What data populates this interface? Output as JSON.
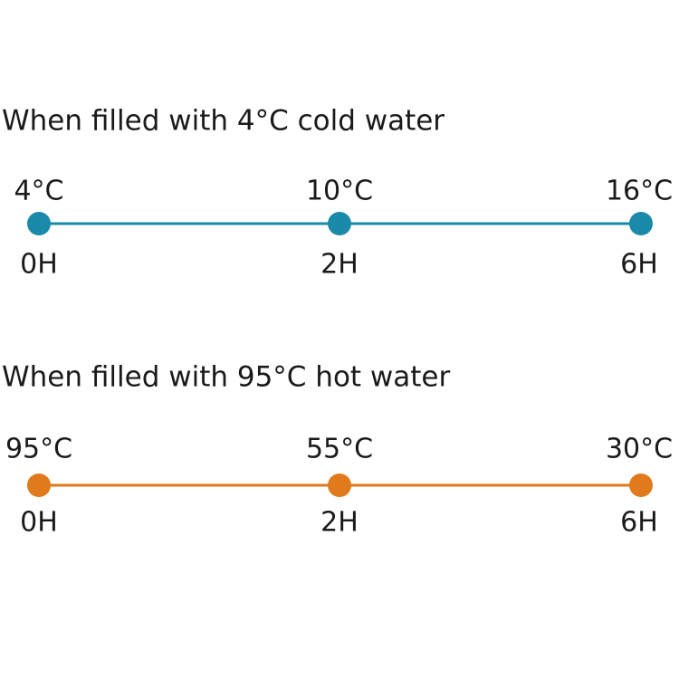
{
  "sections": [
    {
      "title": "When filled with 4°C cold water",
      "points": [
        {
          "temperature": "4°C",
          "time": "0H"
        },
        {
          "temperature": "10°C",
          "time": "2H"
        },
        {
          "temperature": "16°C",
          "time": "6H"
        }
      ]
    },
    {
      "title": "When filled with 95°C hot water",
      "points": [
        {
          "temperature": "95°C",
          "time": "0H"
        },
        {
          "temperature": "55°C",
          "time": "2H"
        },
        {
          "temperature": "30°C",
          "time": "6H"
        }
      ]
    }
  ]
}
